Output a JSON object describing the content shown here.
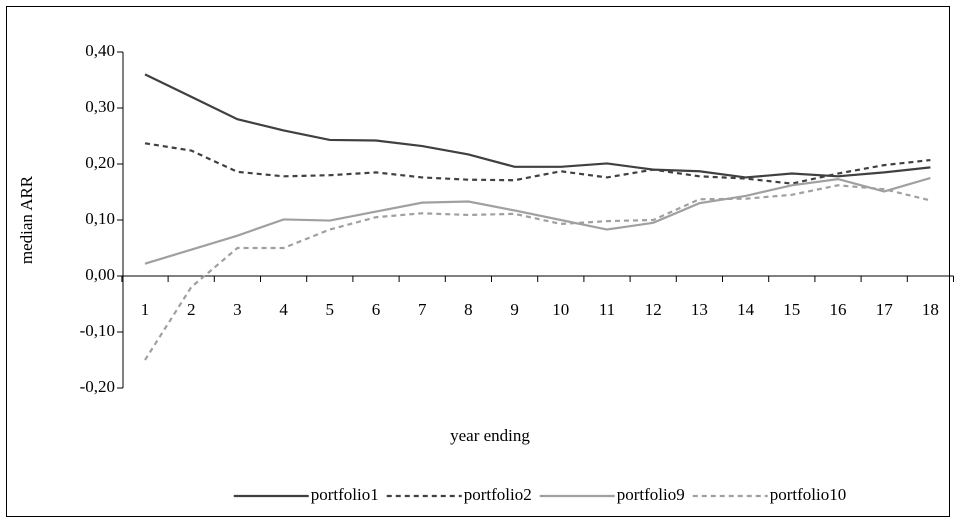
{
  "chart_data": {
    "type": "line",
    "y_label": "median ARR",
    "x_label": "year ending",
    "categories": [
      "1",
      "2",
      "3",
      "4",
      "5",
      "6",
      "7",
      "8",
      "9",
      "10",
      "11",
      "12",
      "13",
      "14",
      "15",
      "16",
      "17",
      "18"
    ],
    "ylim": [
      -0.2,
      0.4
    ],
    "yticks": [
      {
        "value": -0.2,
        "label": "-0,20"
      },
      {
        "value": -0.1,
        "label": "-0,10"
      },
      {
        "value": 0,
        "label": "0,00"
      },
      {
        "value": 0.1,
        "label": "0,10"
      },
      {
        "value": 0.2,
        "label": "0,20"
      },
      {
        "value": 0.3,
        "label": "0,30"
      },
      {
        "value": 0.4,
        "label": "0,40"
      }
    ],
    "legend": "bottom",
    "series": [
      {
        "name": "portfolio1",
        "color": "#404040",
        "linestyle": "solid",
        "values": [
          0.36,
          0.32,
          0.28,
          0.26,
          0.243,
          0.242,
          0.232,
          0.217,
          0.195,
          0.195,
          0.201,
          0.19,
          0.187,
          0.176,
          0.183,
          0.178,
          0.185,
          0.194
        ]
      },
      {
        "name": "portfolio2",
        "color": "#404040",
        "linestyle": "dashed",
        "values": [
          0.237,
          0.224,
          0.186,
          0.178,
          0.18,
          0.185,
          0.176,
          0.172,
          0.171,
          0.187,
          0.176,
          0.19,
          0.178,
          0.174,
          0.165,
          0.183,
          0.198,
          0.207
        ]
      },
      {
        "name": "portfolio9",
        "color": "#a0a0a0",
        "linestyle": "solid",
        "values": [
          0.022,
          0.047,
          0.072,
          0.101,
          0.099,
          0.115,
          0.131,
          0.133,
          0.117,
          0.1,
          0.083,
          0.095,
          0.13,
          0.143,
          0.162,
          0.173,
          0.151,
          0.175
        ]
      },
      {
        "name": "portfolio10",
        "color": "#a0a0a0",
        "linestyle": "dashed",
        "values": [
          -0.15,
          -0.02,
          0.05,
          0.05,
          0.083,
          0.105,
          0.112,
          0.109,
          0.111,
          0.093,
          0.098,
          0.1,
          0.137,
          0.138,
          0.145,
          0.162,
          0.155,
          0.135
        ]
      }
    ]
  }
}
